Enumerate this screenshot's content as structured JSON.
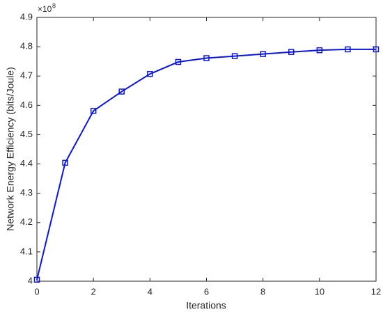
{
  "chart_data": {
    "type": "line",
    "x_label": "Iterations",
    "y_label": "Network Energy Efficiency (bits/Joule)",
    "y_multiplier": {
      "base": "×10",
      "exponent": "8"
    },
    "x": [
      0,
      1,
      2,
      3,
      4,
      5,
      6,
      7,
      8,
      9,
      10,
      11,
      12
    ],
    "series": [
      {
        "name": "Network Energy Efficiency",
        "color": "#0a14e6",
        "values": [
          4.005,
          4.404,
          4.581,
          4.647,
          4.707,
          4.748,
          4.761,
          4.768,
          4.775,
          4.782,
          4.788,
          4.791,
          4.791
        ]
      }
    ],
    "marker": "square",
    "xlim": [
      0,
      12
    ],
    "xticks": [
      0,
      2,
      4,
      6,
      8,
      10,
      12
    ],
    "ylim": [
      4,
      4.9
    ],
    "yticks": [
      4,
      4.1,
      4.2,
      4.3,
      4.4,
      4.5,
      4.6,
      4.7,
      4.8,
      4.9
    ],
    "grid": false
  }
}
